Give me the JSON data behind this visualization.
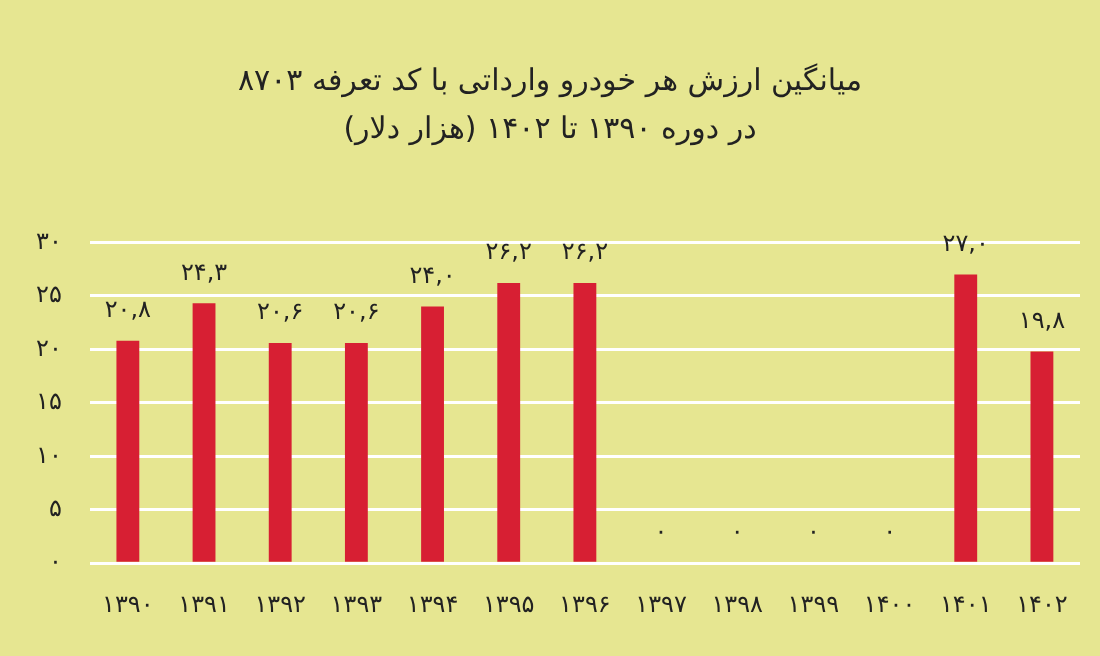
{
  "chart_data": {
    "type": "bar",
    "title": "میانگین ارزش هر خودرو وارداتی با کد تعرفه ۸۷۰۳",
    "subtitle": "در دوره ۱۳۹۰ تا ۱۴۰۲ (هزار دلار)",
    "categories": [
      "۱۳۹۰",
      "۱۳۹۱",
      "۱۳۹۲",
      "۱۳۹۳",
      "۱۳۹۴",
      "۱۳۹۵",
      "۱۳۹۶",
      "۱۳۹۷",
      "۱۳۹۸",
      "۱۳۹۹",
      "۱۴۰۰",
      "۱۴۰۱",
      "۱۴۰۲"
    ],
    "values": [
      20.8,
      24.3,
      20.6,
      20.6,
      24.0,
      26.2,
      26.2,
      0,
      0,
      0,
      0,
      27.0,
      19.8
    ],
    "value_labels": [
      "۲۰,۸",
      "۲۴,۳",
      "۲۰,۶",
      "۲۰,۶",
      "۲۴,۰",
      "۲۶,۲",
      "۲۶,۲",
      "۰",
      "۰",
      "۰",
      "۰",
      "۲۷,۰",
      "۱۹,۸"
    ],
    "color": "#d71f33",
    "ylim": [
      0,
      30
    ],
    "yticks": [
      {
        "value": 0,
        "label": "۰"
      },
      {
        "value": 5,
        "label": "۵"
      },
      {
        "value": 10,
        "label": "۱۰"
      },
      {
        "value": 15,
        "label": "۱۵"
      },
      {
        "value": 20,
        "label": "۲۰"
      },
      {
        "value": 25,
        "label": "۲۵"
      },
      {
        "value": 30,
        "label": "۳۰"
      }
    ],
    "grid": "y"
  }
}
